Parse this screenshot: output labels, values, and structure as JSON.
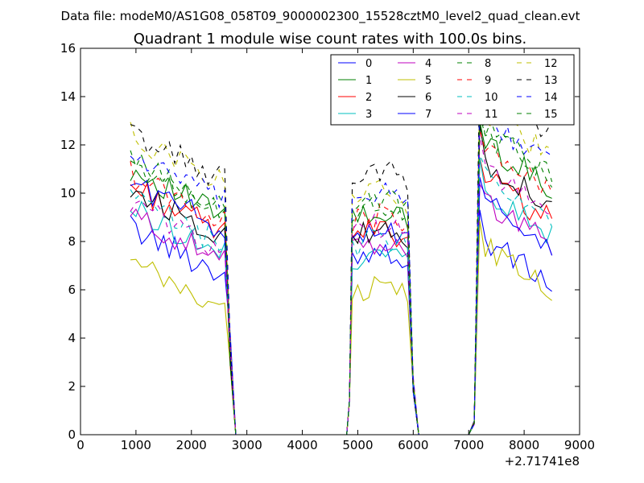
{
  "figure": {
    "suptitle": "Data file: modeM0/AS1G08_058T09_9000002300_15528cztM0_level2_quad_clean.evt"
  },
  "chart_data": {
    "type": "line",
    "title": "Quadrant 1 module wise count rates with 100.0s bins.",
    "xlabel": "",
    "ylabel": "",
    "x_offset_label": "+2.71741e8",
    "xlim": [
      0,
      9000
    ],
    "ylim": [
      0,
      16
    ],
    "xticks": [
      0,
      1000,
      2000,
      3000,
      4000,
      5000,
      6000,
      7000,
      8000,
      9000
    ],
    "yticks": [
      0,
      2,
      4,
      6,
      8,
      10,
      12,
      14,
      16
    ],
    "grid": false,
    "legend": {
      "placement": "top-right",
      "columns": 4
    },
    "series": [
      {
        "name": "0",
        "color": "#0000ff",
        "dash": "solid",
        "levels": [
          8.6,
          7.3,
          8.2
        ]
      },
      {
        "name": "1",
        "color": "#008000",
        "dash": "solid",
        "levels": [
          11.0,
          8.8,
          12.2
        ]
      },
      {
        "name": "2",
        "color": "#ff0000",
        "dash": "solid",
        "levels": [
          10.3,
          8.1,
          10.8
        ]
      },
      {
        "name": "3",
        "color": "#00bfbf",
        "dash": "solid",
        "levels": [
          9.4,
          7.2,
          10.2
        ]
      },
      {
        "name": "4",
        "color": "#bf00bf",
        "dash": "solid",
        "levels": [
          9.1,
          7.5,
          9.8
        ]
      },
      {
        "name": "5",
        "color": "#bfbf00",
        "dash": "solid",
        "levels": [
          7.1,
          5.8,
          7.9
        ]
      },
      {
        "name": "6",
        "color": "#000000",
        "dash": "solid",
        "levels": [
          10.2,
          8.0,
          11.5
        ]
      },
      {
        "name": "7",
        "color": "#0000ff",
        "dash": "solid",
        "levels": [
          10.5,
          7.9,
          9.8
        ]
      },
      {
        "name": "8",
        "color": "#008000",
        "dash": "dashed",
        "levels": [
          11.3,
          9.2,
          12.8
        ]
      },
      {
        "name": "9",
        "color": "#ff0000",
        "dash": "dashed",
        "levels": [
          10.8,
          8.7,
          12.0
        ]
      },
      {
        "name": "10",
        "color": "#00bfbf",
        "dash": "dashed",
        "levels": [
          9.8,
          7.7,
          10.7
        ]
      },
      {
        "name": "11",
        "color": "#bf00bf",
        "dash": "dashed",
        "levels": [
          9.6,
          8.2,
          11.2
        ]
      },
      {
        "name": "12",
        "color": "#bfbf00",
        "dash": "dashed",
        "levels": [
          12.4,
          9.6,
          13.5
        ]
      },
      {
        "name": "13",
        "color": "#000000",
        "dash": "dashed",
        "levels": [
          12.5,
          10.5,
          14.5
        ]
      },
      {
        "name": "14",
        "color": "#0000ff",
        "dash": "dashed",
        "levels": [
          11.6,
          9.5,
          13.2
        ]
      },
      {
        "name": "15",
        "color": "#008000",
        "dash": "dashed",
        "levels": [
          11.3,
          9.3,
          12.6
        ]
      }
    ]
  }
}
